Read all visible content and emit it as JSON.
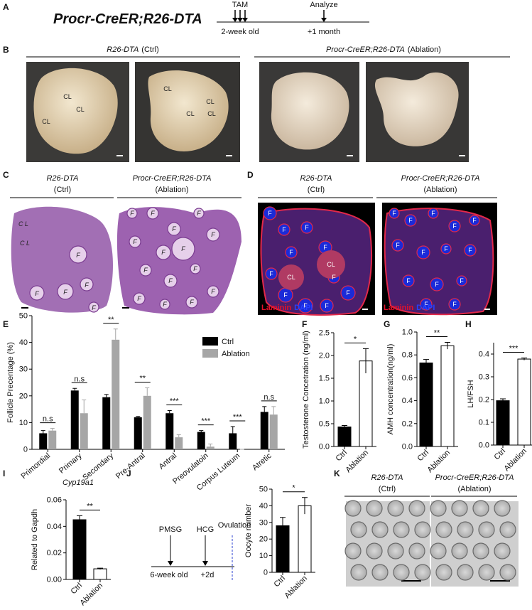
{
  "panel_labels": [
    "A",
    "B",
    "C",
    "D",
    "E",
    "F",
    "G",
    "H",
    "I",
    "J",
    "K"
  ],
  "A": {
    "genotype": "Procr-CreER;R26-DTA",
    "events": [
      "TAM",
      "Analyze"
    ],
    "times": [
      "2-week old",
      "+1 month"
    ]
  },
  "B": {
    "groups": [
      {
        "genotype": "R26-DTA",
        "condition": "(Ctrl)"
      },
      {
        "genotype": "Procr-CreER;R26-DTA",
        "condition": "(Ablation)"
      }
    ],
    "image_annotations": [
      [
        "CL",
        "CL",
        "CL"
      ],
      [
        "CL",
        "CL",
        "CL",
        "CL"
      ]
    ]
  },
  "C": {
    "groups": [
      {
        "genotype": "R26-DTA",
        "condition": "(Ctrl)"
      },
      {
        "genotype": "Procr-CreER;R26-DTA",
        "condition": "(Ablation)"
      }
    ],
    "image_annotations": [
      [
        "C L",
        "C L",
        "F",
        "F",
        "F",
        "F",
        "F"
      ],
      [
        "F",
        "F",
        "F",
        "F",
        "F",
        "F",
        "F",
        "F",
        "F",
        "F",
        "F",
        "F",
        "F",
        "F",
        "F"
      ]
    ]
  },
  "D": {
    "groups": [
      {
        "genotype": "R26-DTA",
        "condition": "(Ctrl)"
      },
      {
        "genotype": "Procr-CreER;R26-DTA",
        "condition": "(Ablation)"
      }
    ],
    "stains": [
      "Laminin",
      "DAPI"
    ],
    "image_annotations": [
      [
        "F",
        "F",
        "F",
        "F",
        "F",
        "F",
        "F",
        "F",
        "F",
        "F",
        "F",
        "CL",
        "CL"
      ],
      [
        "F",
        "F",
        "F",
        "F",
        "F",
        "F",
        "F",
        "F",
        "F",
        "F",
        "F",
        "F",
        "F",
        "F"
      ]
    ]
  },
  "J": {
    "events": [
      "PMSG",
      "HCG",
      "Ovulation"
    ],
    "times": [
      "6-week old",
      "+2d"
    ]
  },
  "K": {
    "groups": [
      {
        "genotype": "R26-DTA",
        "condition": "(Ctrl)"
      },
      {
        "genotype": "Procr-CreER;R26-DTA",
        "condition": "(Ablation)"
      }
    ]
  },
  "chart_data": [
    {
      "type": "grouped-bar",
      "ylabel": "Follicle Precentage (%)",
      "categories": [
        "Primordial",
        "Primary",
        "Secondary",
        "Pre-Antral",
        "Antral",
        "Preovulatoin",
        "Corpus Luteum",
        "Atretic"
      ],
      "series": [
        {
          "name": "Ctrl",
          "color": "#000000",
          "values": [
            6,
            22,
            19.5,
            12,
            13.5,
            6.5,
            6,
            14
          ],
          "errors": [
            1,
            0.8,
            1,
            0.3,
            1,
            0.5,
            2.5,
            2
          ]
        },
        {
          "name": "Ablation",
          "color": "#a6a6a6",
          "values": [
            7,
            13.5,
            41,
            20,
            4.5,
            1,
            0,
            13
          ],
          "errors": [
            0.8,
            5,
            4,
            3,
            1,
            1,
            0,
            3
          ]
        }
      ],
      "significance": [
        "n.s",
        "n.s",
        "**",
        "**",
        "***",
        "***",
        "***",
        "n.s"
      ],
      "ylim": [
        0,
        50
      ],
      "yticks": [
        0,
        10,
        20,
        30,
        40,
        50
      ],
      "legend": "upper-right"
    },
    {
      "type": "bar",
      "ylabel": "Testosterone Concetration (ng/ml)",
      "categories": [
        "Ctrl",
        "Ablation"
      ],
      "values": [
        0.43,
        1.88
      ],
      "errors": [
        0.03,
        0.27
      ],
      "colors": [
        "#000000",
        "#ffffff"
      ],
      "significance": "*",
      "ylim": [
        0,
        2.5
      ],
      "yticks": [
        {
          "value": 0,
          "label": "0.0"
        },
        0.5,
        {
          "value": 1,
          "label": "1.0"
        },
        1.5,
        {
          "value": 2,
          "label": "2.0"
        },
        2.5
      ]
    },
    {
      "type": "bar",
      "ylabel": "AMH concentration(ng/ml)",
      "categories": [
        "Ctrl",
        "Ablation"
      ],
      "values": [
        0.73,
        0.88
      ],
      "errors": [
        0.03,
        0.03
      ],
      "colors": [
        "#000000",
        "#ffffff"
      ],
      "significance": "**",
      "ylim": [
        0,
        1
      ],
      "yticks": [
        {
          "value": 0,
          "label": "0.0"
        },
        0.2,
        0.4,
        0.6,
        0.8,
        {
          "value": 1,
          "label": "1.0"
        }
      ]
    },
    {
      "type": "bar",
      "ylabel": "LH/FSH",
      "categories": [
        "Ctrl",
        "Ablation"
      ],
      "values": [
        0.195,
        0.378
      ],
      "errors": [
        0.008,
        0.005
      ],
      "colors": [
        "#000000",
        "#ffffff"
      ],
      "significance": "***",
      "ylim": [
        0,
        0.45
      ],
      "yticks": [
        {
          "value": 0,
          "label": "0.0"
        },
        0.1,
        0.2,
        0.3,
        0.4
      ]
    },
    {
      "type": "bar",
      "title": "Cyp19a1",
      "ylabel": "Related to Gapdh",
      "categories": [
        "Ctrl",
        "Ablation"
      ],
      "values": [
        0.045,
        0.008
      ],
      "errors": [
        0.003,
        0.0005
      ],
      "colors": [
        "#000000",
        "#ffffff"
      ],
      "significance": "**",
      "ylim": [
        0,
        0.06
      ],
      "yticks": [
        {
          "value": 0,
          "label": "0.00"
        },
        {
          "value": 0.02,
          "label": "0.02"
        },
        {
          "value": 0.04,
          "label": "0.04"
        },
        {
          "value": 0.06,
          "label": "0.06"
        }
      ]
    },
    {
      "type": "bar",
      "ylabel": "Oocyte number",
      "categories": [
        "Ctrl",
        "Ablation"
      ],
      "values": [
        28,
        40
      ],
      "errors": [
        5,
        5
      ],
      "colors": [
        "#000000",
        "#ffffff"
      ],
      "significance": "*",
      "ylim": [
        0,
        50
      ],
      "yticks": [
        0,
        10,
        20,
        30,
        40,
        50
      ]
    }
  ]
}
